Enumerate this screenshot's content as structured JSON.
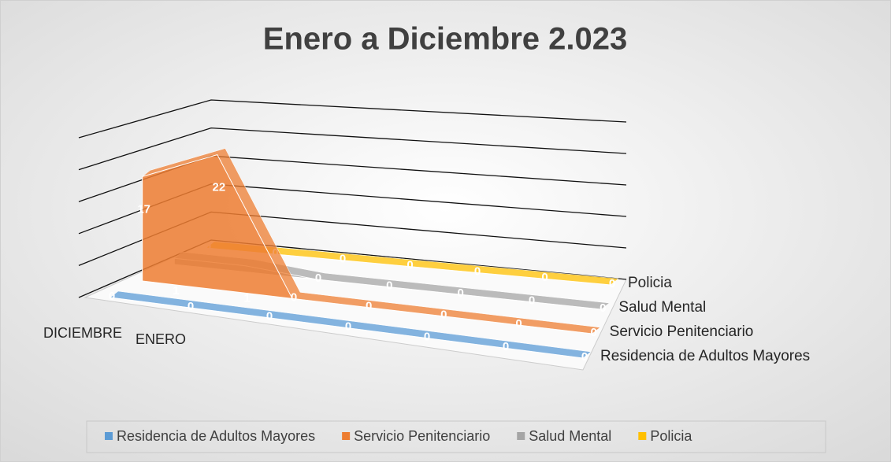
{
  "chart_data": {
    "type": "area3d",
    "title": "Enero a Diciembre 2.023",
    "categories": [
      "DICIEMBRE",
      "ENERO",
      null,
      null,
      null,
      null,
      null
    ],
    "series": [
      {
        "name": "Residencia de Adultos Mayores",
        "color": "#5b9bd5",
        "values": [
          0,
          0,
          0,
          0,
          0,
          0,
          0
        ]
      },
      {
        "name": "Servicio Penitenciario",
        "color": "#ed7d31",
        "values": [
          17,
          22,
          0,
          0,
          0,
          0,
          0
        ]
      },
      {
        "name": "Salud Mental",
        "color": "#a5a5a5",
        "values": [
          1,
          1,
          0,
          0,
          0,
          0,
          0
        ]
      },
      {
        "name": "Policia",
        "color": "#ffc000",
        "values": [
          0,
          0,
          0,
          0,
          0,
          0,
          0
        ]
      }
    ],
    "ylim": [
      0,
      25
    ],
    "yticks": [
      0,
      5,
      10,
      15,
      20,
      25
    ],
    "grid": true,
    "legend": "bottom"
  }
}
